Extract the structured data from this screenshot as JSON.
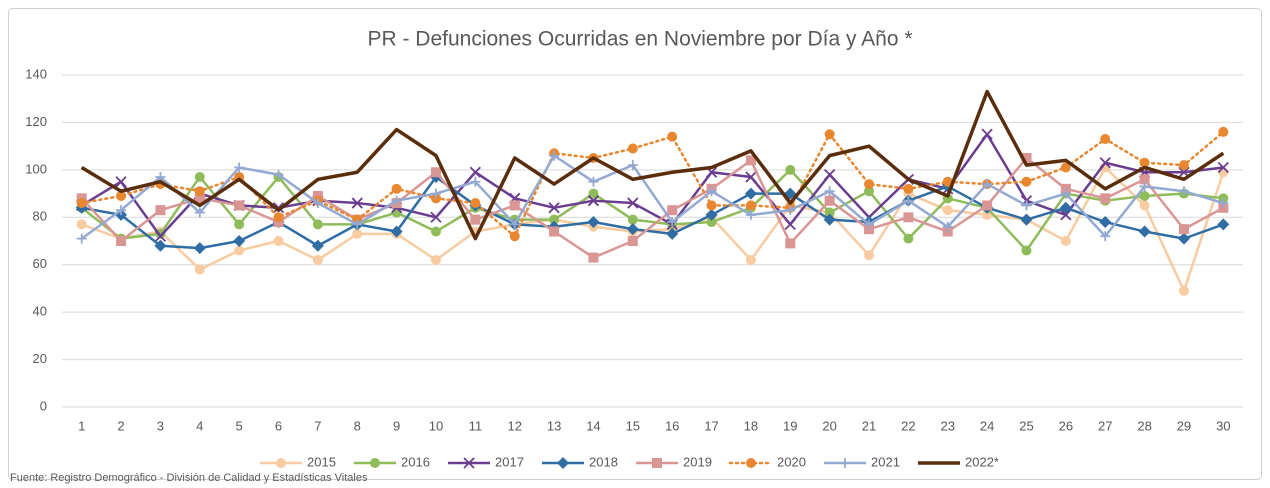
{
  "chart_data": {
    "type": "line",
    "title": "PR - Defunciones Ocurridas en Noviembre por Día y Año *",
    "source": "Fuente: Registro Demográfico - División de Calidad y Estadísticas Vitales",
    "categories": [
      1,
      2,
      3,
      4,
      5,
      6,
      7,
      8,
      9,
      10,
      11,
      12,
      13,
      14,
      15,
      16,
      17,
      18,
      19,
      20,
      21,
      22,
      23,
      24,
      25,
      26,
      27,
      28,
      29,
      30
    ],
    "ylim": [
      0,
      140
    ],
    "yticks": [
      0,
      20,
      40,
      60,
      80,
      100,
      120,
      140
    ],
    "grid": true,
    "legend": "bottom",
    "series": [
      {
        "name": "2015",
        "color": "#f8cba0",
        "marker": "circle",
        "dash": "solid",
        "values": [
          77,
          71,
          74,
          58,
          66,
          70,
          62,
          73,
          73,
          62,
          74,
          77,
          79,
          76,
          74,
          75,
          80,
          62,
          85,
          82,
          64,
          90,
          83,
          81,
          79,
          70,
          101,
          85,
          49,
          99
        ]
      },
      {
        "name": "2016",
        "color": "#8fbc5a",
        "marker": "circle",
        "dash": "solid",
        "values": [
          84,
          71,
          73,
          97,
          77,
          97,
          77,
          77,
          82,
          74,
          84,
          79,
          79,
          90,
          79,
          77,
          78,
          84,
          100,
          82,
          91,
          71,
          88,
          84,
          66,
          90,
          87,
          89,
          90,
          88
        ]
      },
      {
        "name": "2017",
        "color": "#6a3d8f",
        "marker": "x",
        "dash": "solid",
        "values": [
          85,
          95,
          72,
          90,
          85,
          84,
          87,
          86,
          84,
          80,
          99,
          88,
          84,
          87,
          86,
          77,
          99,
          97,
          77,
          98,
          80,
          96,
          92,
          115,
          87,
          81,
          103,
          99,
          99,
          101
        ]
      },
      {
        "name": "2018",
        "color": "#2f6da4",
        "marker": "diamond",
        "dash": "solid",
        "values": [
          84,
          81,
          68,
          67,
          70,
          78,
          68,
          77,
          74,
          97,
          85,
          77,
          76,
          78,
          75,
          73,
          81,
          90,
          90,
          79,
          78,
          87,
          93,
          84,
          79,
          84,
          78,
          74,
          71,
          77
        ]
      },
      {
        "name": "2019",
        "color": "#d99694",
        "marker": "square",
        "dash": "solid",
        "values": [
          88,
          70,
          83,
          88,
          85,
          78,
          89,
          79,
          86,
          99,
          79,
          85,
          74,
          63,
          70,
          83,
          92,
          104,
          69,
          87,
          75,
          80,
          74,
          85,
          105,
          92,
          88,
          96,
          75,
          84
        ]
      },
      {
        "name": "2020",
        "color": "#e8872f",
        "marker": "circle",
        "dash": "dotted",
        "values": [
          86,
          89,
          94,
          91,
          97,
          80,
          87,
          79,
          92,
          88,
          86,
          72,
          107,
          105,
          109,
          114,
          85,
          85,
          84,
          115,
          94,
          92,
          95,
          94,
          95,
          101,
          113,
          103,
          102,
          116
        ]
      },
      {
        "name": "2021",
        "color": "#93a9d2",
        "marker": "plus",
        "dash": "solid",
        "values": [
          71,
          83,
          97,
          82,
          101,
          98,
          86,
          77,
          87,
          90,
          95,
          77,
          106,
          95,
          102,
          78,
          91,
          81,
          83,
          91,
          77,
          87,
          76,
          94,
          85,
          90,
          72,
          93,
          91,
          86
        ]
      },
      {
        "name": "2022*",
        "color": "#5a2d0c",
        "marker": "none",
        "dash": "thick",
        "values": [
          101,
          91,
          95,
          85,
          96,
          83,
          96,
          99,
          117,
          106,
          71,
          105,
          94,
          105,
          96,
          99,
          101,
          108,
          86,
          106,
          110,
          96,
          89,
          133,
          102,
          104,
          92,
          101,
          96,
          107
        ]
      }
    ]
  }
}
